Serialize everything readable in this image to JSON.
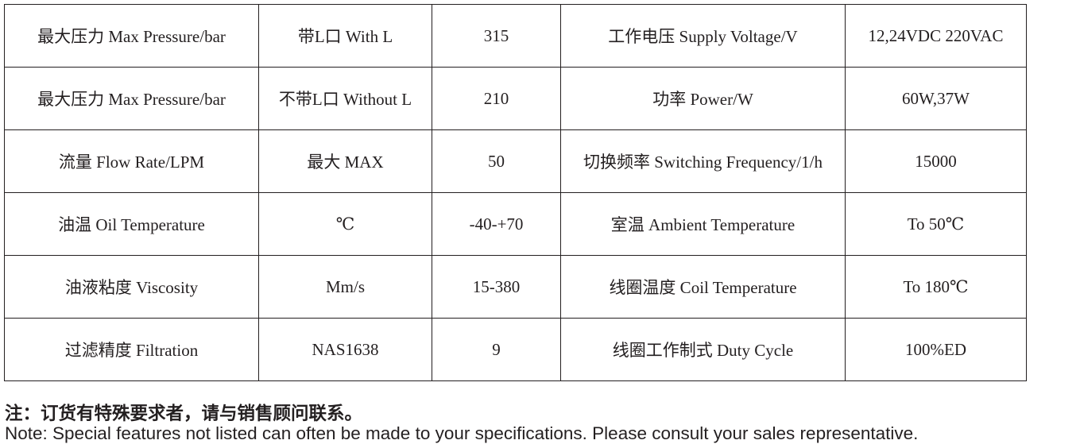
{
  "table": {
    "rows": [
      [
        "最大压力  Max Pressure/bar",
        "带L口  With L",
        "315",
        "工作电压  Supply Voltage/V",
        "12,24VDC  220VAC"
      ],
      [
        "最大压力  Max Pressure/bar",
        "不带L口  Without L",
        "210",
        "功率  Power/W",
        "60W,37W"
      ],
      [
        "流量  Flow Rate/LPM",
        "最大   MAX",
        "50",
        "切换频率  Switching Frequency/1/h",
        "15000"
      ],
      [
        "油温  Oil Temperature",
        "℃",
        "-40-+70",
        "室温  Ambient Temperature",
        "To 50℃"
      ],
      [
        "油液粘度  Viscosity",
        "Mm/s",
        "15-380",
        "线圈温度  Coil Temperature",
        "To 180℃"
      ],
      [
        "过滤精度  Filtration",
        "NAS1638",
        "9",
        "线圈工作制式  Duty Cycle",
        "100%ED"
      ]
    ]
  },
  "notes": {
    "cn": "注：订货有特殊要求者，请与销售顾问联系。",
    "en": "Note: Special features not listed can often be made to your specifications. Please consult your sales representative."
  }
}
